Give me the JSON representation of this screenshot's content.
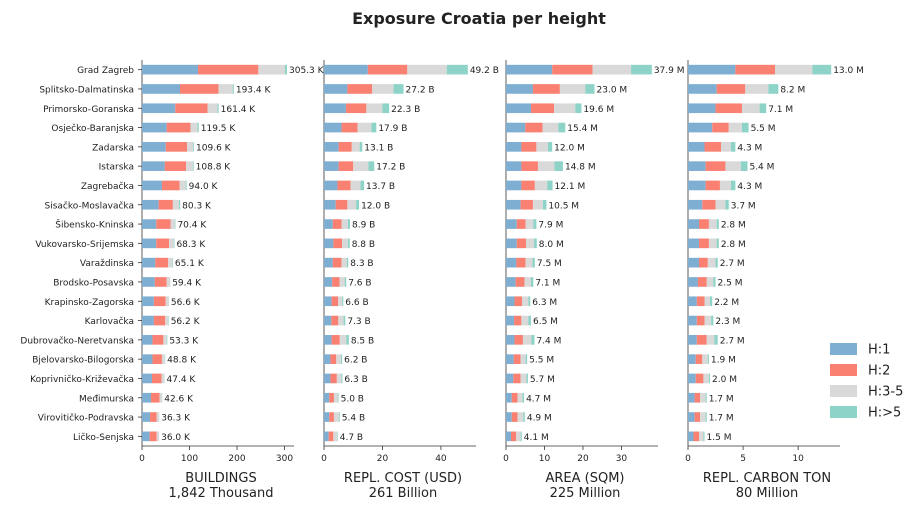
{
  "chart_data": {
    "type": "bar",
    "orientation": "horizontal",
    "stacked": true,
    "title": "Exposure Croatia per height",
    "categories": [
      "Grad Zagreb",
      "Splitsko-Dalmatinska",
      "Primorsko-Goranska",
      "Osječko-Baranjska",
      "Zadarska",
      "Istarska",
      "Zagrebačka",
      "Sisačko-Moslavačka",
      "Šibensko-Kninska",
      "Vukovarsko-Srijemska",
      "Varaždinska",
      "Brodsko-Posavska",
      "Krapinsko-Zagorska",
      "Karlovačka",
      "Dubrovačko-Neretvanska",
      "Bjelovarsko-Bilogorska",
      "Koprivničko-Križevačka",
      "Međimurska",
      "Virovitičko-Podravska",
      "Ličko-Senjska"
    ],
    "legend": {
      "placement": "right",
      "entries": [
        {
          "name": "H:1",
          "color": "#7faed3"
        },
        {
          "name": "H:2",
          "color": "#fa8072"
        },
        {
          "name": "H:3-5",
          "color": "#d9d9d9"
        },
        {
          "name": "H:>5",
          "color": "#8dd3c7"
        }
      ]
    },
    "panels": [
      {
        "xlabel": "BUILDINGS",
        "subtitle": "1,842 Thousand",
        "xlim": [
          0,
          320
        ],
        "xticks": [
          0,
          100,
          200,
          300
        ],
        "xtick_labels": [
          "0",
          "100",
          "200",
          "300"
        ],
        "series": [
          {
            "name": "H:1",
            "values": [
              118,
              80,
              70,
              52,
              50,
              48,
              42,
              35,
              30,
              30,
              28,
              27,
              25,
              25,
              22,
              22,
              21,
              19,
              17,
              16
            ]
          },
          {
            "name": "H:2",
            "values": [
              127,
              81,
              68,
              50,
              45,
              45,
              37,
              30,
              30,
              27,
              27,
              25,
              25,
              24,
              23,
              20,
              20,
              18,
              14,
              15
            ]
          },
          {
            "name": "H:3-5",
            "values": [
              56,
              30,
              21,
              15,
              13,
              14,
              13,
              13,
              9,
              10,
              9,
              7,
              6,
              6,
              7,
              6,
              6,
              5,
              5,
              5
            ]
          },
          {
            "name": "H:>5",
            "values": [
              4.3,
              2.4,
              2.4,
              2.5,
              1.6,
              1.8,
              2.0,
              2.3,
              1.4,
              1.3,
              1.1,
              0.4,
              0.6,
              1.2,
              1.3,
              0.8,
              0.4,
              0.6,
              0.3,
              0.0
            ]
          }
        ],
        "labels": [
          "305.3 K",
          "193.4 K",
          "161.4 K",
          "119.5 K",
          "109.6 K",
          "108.8 K",
          "94.0 K",
          "80.3 K",
          "70.4 K",
          "68.3 K",
          "65.1 K",
          "59.4 K",
          "56.6 K",
          "56.2 K",
          "53.3 K",
          "48.8 K",
          "47.4 K",
          "42.6 K",
          "36.3 K",
          "36.0 K"
        ]
      },
      {
        "xlabel": "REPL. COST (USD)",
        "subtitle": "261 Billion",
        "xlim": [
          0,
          52
        ],
        "xticks": [
          0,
          20,
          40
        ],
        "xtick_labels": [
          "0",
          "20",
          "40"
        ],
        "series": [
          {
            "name": "H:1",
            "values": [
              15.0,
              8.0,
              7.5,
              6.0,
              5.0,
              5.0,
              4.6,
              4.0,
              3.0,
              3.2,
              3.0,
              2.8,
              2.6,
              2.5,
              2.6,
              2.2,
              2.2,
              1.8,
              1.8,
              1.6
            ]
          },
          {
            "name": "H:2",
            "values": [
              13.5,
              8.5,
              7.0,
              5.5,
              4.5,
              5.0,
              4.5,
              4.0,
              3.0,
              3.0,
              3.0,
              2.5,
              2.2,
              2.4,
              2.8,
              2.0,
              2.2,
              1.6,
              1.6,
              1.6
            ]
          },
          {
            "name": "H:3-5",
            "values": [
              13.5,
              7.3,
              5.5,
              4.7,
              2.7,
              5.2,
              3.4,
              3.0,
              2.2,
              2.0,
              1.8,
              1.8,
              1.4,
              1.8,
              2.2,
              1.6,
              1.5,
              1.3,
              1.7,
              1.3
            ]
          },
          {
            "name": "H:>5",
            "values": [
              7.2,
              3.4,
              2.3,
              1.7,
              0.9,
              2.0,
              1.2,
              1.0,
              0.7,
              0.6,
              0.5,
              0.5,
              0.4,
              0.6,
              0.9,
              0.4,
              0.4,
              0.3,
              0.3,
              0.2
            ]
          }
        ],
        "labels": [
          "49.2 B",
          "27.2 B",
          "22.3 B",
          "17.9 B",
          "13.1 B",
          "17.2 B",
          "13.7 B",
          "12.0 B",
          "8.9 B",
          "8.8 B",
          "8.3 B",
          "7.6 B",
          "6.6 B",
          "7.3 B",
          "8.5 B",
          "6.2 B",
          "6.3 B",
          "5.0 B",
          "5.4 B",
          "4.7 B"
        ]
      },
      {
        "xlabel": "AREA (SQM)",
        "subtitle": "225 Million",
        "xlim": [
          0,
          39.5
        ],
        "xticks": [
          0,
          10,
          20,
          30
        ],
        "xtick_labels": [
          "0",
          "10",
          "20",
          "30"
        ],
        "series": [
          {
            "name": "H:1",
            "values": [
              12.0,
              7.0,
              6.5,
              5.0,
              4.0,
              4.0,
              4.0,
              3.8,
              2.8,
              2.8,
              2.7,
              2.5,
              2.2,
              2.1,
              2.2,
              2.0,
              1.9,
              1.5,
              1.5,
              1.3
            ]
          },
          {
            "name": "H:2",
            "values": [
              10.5,
              7.0,
              6.0,
              4.5,
              3.9,
              4.3,
              3.5,
              3.2,
              2.3,
              2.4,
              2.4,
              2.3,
              2.0,
              1.9,
              2.2,
              1.8,
              1.9,
              1.5,
              1.5,
              1.3
            ]
          },
          {
            "name": "H:3-5",
            "values": [
              10.0,
              6.6,
              5.5,
              4.1,
              3.0,
              4.3,
              3.2,
              2.6,
              2.0,
              2.1,
              1.8,
              1.7,
              1.6,
              1.8,
              2.2,
              1.3,
              1.5,
              1.3,
              1.5,
              1.2
            ]
          },
          {
            "name": "H:>5",
            "values": [
              5.4,
              2.4,
              1.6,
              1.8,
              1.1,
              2.2,
              1.4,
              0.9,
              0.8,
              0.7,
              0.6,
              0.6,
              0.5,
              0.7,
              0.8,
              0.4,
              0.4,
              0.4,
              0.4,
              0.3
            ]
          }
        ],
        "labels": [
          "37.9 M",
          "23.0 M",
          "19.6 M",
          "15.4 M",
          "12.0 M",
          "14.8 M",
          "12.1 M",
          "10.5 M",
          "7.9 M",
          "8.0 M",
          "7.5 M",
          "7.1 M",
          "6.3 M",
          "6.5 M",
          "7.4 M",
          "5.5 M",
          "5.7 M",
          "4.7 M",
          "4.9 M",
          "4.1 M"
        ]
      },
      {
        "xlabel": "REPL. CARBON TON",
        "subtitle": "80 Million",
        "xlim": [
          0,
          13.8
        ],
        "xticks": [
          0,
          5,
          10
        ],
        "xtick_labels": [
          "0",
          "5",
          "10"
        ],
        "series": [
          {
            "name": "H:1",
            "values": [
              4.3,
              2.6,
              2.5,
              2.2,
              1.5,
              1.6,
              1.6,
              1.3,
              1.0,
              1.0,
              1.0,
              0.9,
              0.8,
              0.8,
              0.8,
              0.7,
              0.7,
              0.6,
              0.6,
              0.5
            ]
          },
          {
            "name": "H:2",
            "values": [
              3.6,
              2.6,
              2.4,
              1.5,
              1.5,
              1.8,
              1.3,
              1.2,
              0.9,
              0.9,
              0.8,
              0.8,
              0.7,
              0.7,
              0.9,
              0.6,
              0.7,
              0.5,
              0.5,
              0.5
            ]
          },
          {
            "name": "H:3-5",
            "values": [
              3.4,
              2.1,
              1.6,
              1.2,
              0.9,
              1.4,
              1.0,
              0.9,
              0.7,
              0.7,
              0.7,
              0.6,
              0.5,
              0.6,
              0.7,
              0.5,
              0.5,
              0.5,
              0.5,
              0.4
            ]
          },
          {
            "name": "H:>5",
            "values": [
              1.7,
              0.9,
              0.6,
              0.6,
              0.4,
              0.6,
              0.4,
              0.3,
              0.2,
              0.2,
              0.2,
              0.2,
              0.2,
              0.2,
              0.3,
              0.1,
              0.1,
              0.1,
              0.1,
              0.1
            ]
          }
        ],
        "labels": [
          "13.0 M",
          "8.2 M",
          "7.1 M",
          "5.5 M",
          "4.3 M",
          "5.4 M",
          "4.3 M",
          "3.7 M",
          "2.8 M",
          "2.8 M",
          "2.7 M",
          "2.5 M",
          "2.2 M",
          "2.3 M",
          "2.7 M",
          "1.9 M",
          "2.0 M",
          "1.7 M",
          "1.7 M",
          "1.5 M"
        ]
      }
    ]
  }
}
